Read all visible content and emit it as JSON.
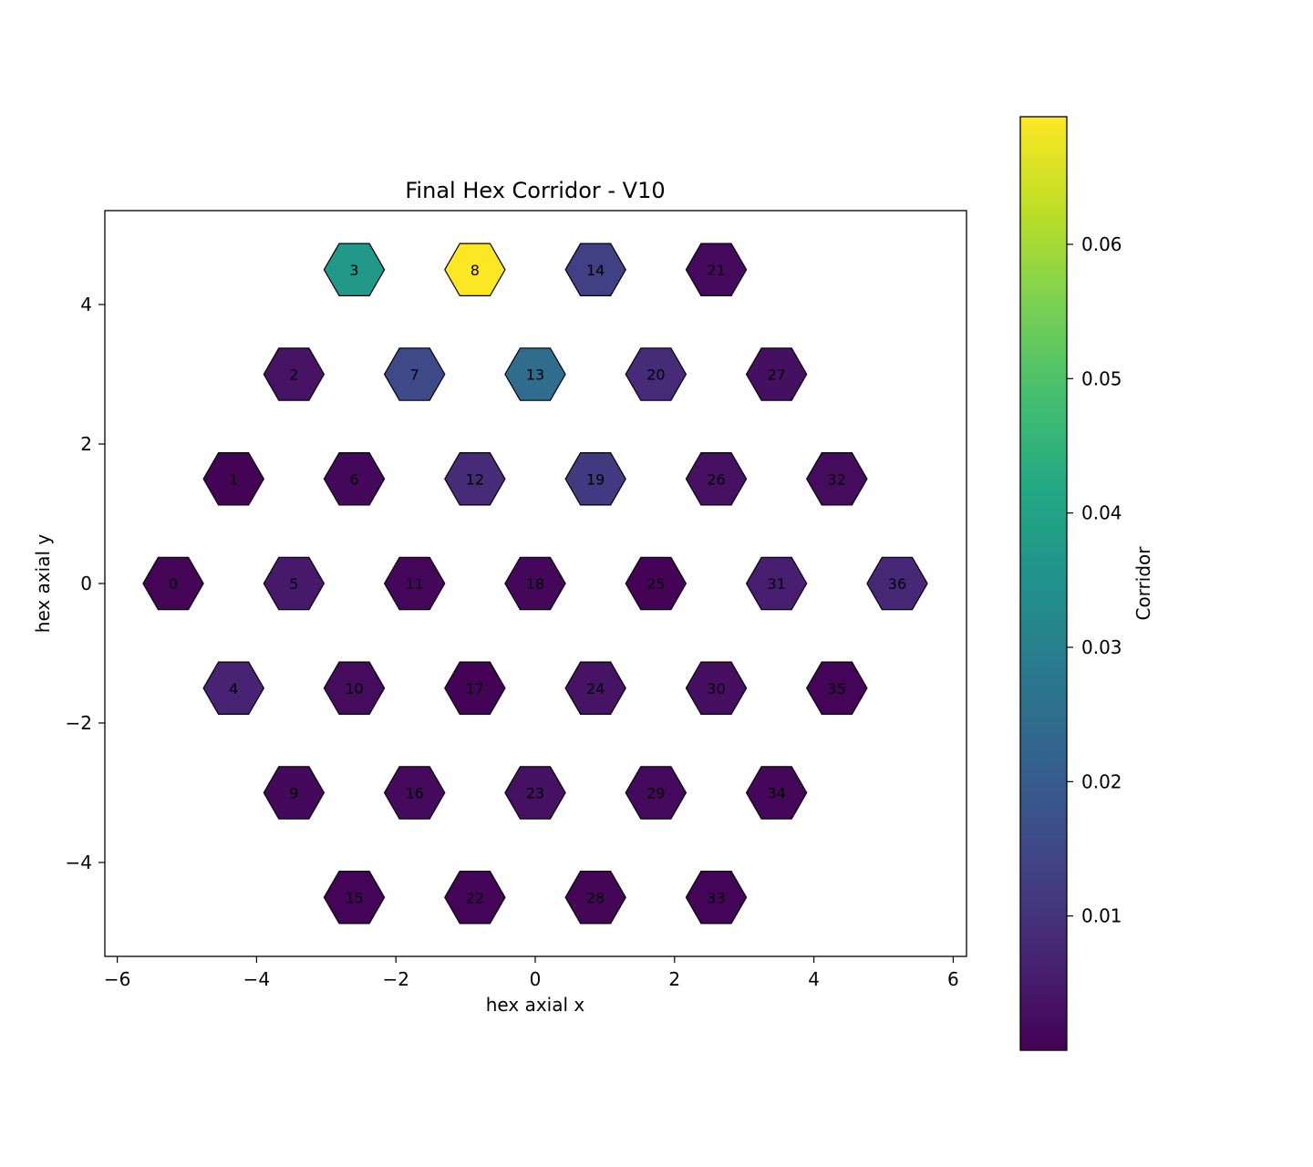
{
  "chart_data": {
    "type": "heatmap",
    "title": "Final Hex Corridor - V10",
    "xlabel": "hex axial x",
    "ylabel": "hex axial y",
    "xlim": [
      -6.1,
      6.1
    ],
    "ylim": [
      -5.35,
      5.35
    ],
    "xticks": [
      -6,
      -4,
      -2,
      0,
      2,
      4,
      6
    ],
    "xtick_labels": [
      "−6",
      "−4",
      "−2",
      "0",
      "2",
      "4",
      "6"
    ],
    "yticks": [
      -4,
      -2,
      0,
      2,
      4
    ],
    "ytick_labels": [
      "−4",
      "−2",
      "0",
      "2",
      "4"
    ],
    "colorbar": {
      "label": "Corridor",
      "colormap": "viridis",
      "min": 0.0,
      "max": 0.0695,
      "ticks": [
        0.01,
        0.02,
        0.03,
        0.04,
        0.05,
        0.06
      ],
      "tick_labels": [
        "0.01",
        "0.02",
        "0.03",
        "0.04",
        "0.05",
        "0.06"
      ]
    },
    "hex_radius": 0.433,
    "cells": [
      {
        "id": 0,
        "x": -5.196,
        "y": 0.0,
        "value": 0.0007
      },
      {
        "id": 1,
        "x": -4.33,
        "y": 1.5,
        "value": 0.0005
      },
      {
        "id": 2,
        "x": -3.464,
        "y": 3.0,
        "value": 0.0035
      },
      {
        "id": 3,
        "x": -2.598,
        "y": 4.5,
        "value": 0.037
      },
      {
        "id": 4,
        "x": -4.33,
        "y": -1.5,
        "value": 0.0065
      },
      {
        "id": 5,
        "x": -3.464,
        "y": 0.0,
        "value": 0.0048
      },
      {
        "id": 6,
        "x": -2.598,
        "y": 1.5,
        "value": 0.0015
      },
      {
        "id": 7,
        "x": -1.732,
        "y": 3.0,
        "value": 0.0155
      },
      {
        "id": 8,
        "x": -0.866,
        "y": 4.5,
        "value": 0.0695
      },
      {
        "id": 9,
        "x": -3.464,
        "y": -3.0,
        "value": 0.0015
      },
      {
        "id": 10,
        "x": -2.598,
        "y": -1.5,
        "value": 0.0022
      },
      {
        "id": 11,
        "x": -1.732,
        "y": 0.0,
        "value": 0.0012
      },
      {
        "id": 12,
        "x": -0.866,
        "y": 1.5,
        "value": 0.0085
      },
      {
        "id": 13,
        "x": 0.0,
        "y": 3.0,
        "value": 0.0245
      },
      {
        "id": 14,
        "x": 0.866,
        "y": 4.5,
        "value": 0.013
      },
      {
        "id": 15,
        "x": -2.598,
        "y": -4.5,
        "value": 0.0006
      },
      {
        "id": 16,
        "x": -1.732,
        "y": -3.0,
        "value": 0.0018
      },
      {
        "id": 17,
        "x": -0.866,
        "y": -1.5,
        "value": 0.0004
      },
      {
        "id": 18,
        "x": 0.0,
        "y": 0.0,
        "value": 0.0012
      },
      {
        "id": 19,
        "x": 0.866,
        "y": 1.5,
        "value": 0.0115
      },
      {
        "id": 20,
        "x": 1.732,
        "y": 3.0,
        "value": 0.0085
      },
      {
        "id": 21,
        "x": 2.598,
        "y": 4.5,
        "value": 0.0018
      },
      {
        "id": 22,
        "x": -0.866,
        "y": -4.5,
        "value": 0.0008
      },
      {
        "id": 23,
        "x": 0.0,
        "y": -3.0,
        "value": 0.0032
      },
      {
        "id": 24,
        "x": 0.866,
        "y": -1.5,
        "value": 0.0035
      },
      {
        "id": 25,
        "x": 1.732,
        "y": 0.0,
        "value": 0.0004
      },
      {
        "id": 26,
        "x": 2.598,
        "y": 1.5,
        "value": 0.0032
      },
      {
        "id": 27,
        "x": 3.464,
        "y": 3.0,
        "value": 0.003
      },
      {
        "id": 28,
        "x": 0.866,
        "y": -4.5,
        "value": 0.0009
      },
      {
        "id": 29,
        "x": 1.732,
        "y": -3.0,
        "value": 0.0018
      },
      {
        "id": 30,
        "x": 2.598,
        "y": -1.5,
        "value": 0.0028
      },
      {
        "id": 31,
        "x": 3.464,
        "y": 0.0,
        "value": 0.0058
      },
      {
        "id": 32,
        "x": 4.33,
        "y": 1.5,
        "value": 0.0022
      },
      {
        "id": 33,
        "x": 2.598,
        "y": -4.5,
        "value": 0.0006
      },
      {
        "id": 34,
        "x": 3.464,
        "y": -3.0,
        "value": 0.0012
      },
      {
        "id": 35,
        "x": 4.33,
        "y": -1.5,
        "value": 0.0008
      },
      {
        "id": 36,
        "x": 5.196,
        "y": 0.0,
        "value": 0.0078
      }
    ]
  }
}
